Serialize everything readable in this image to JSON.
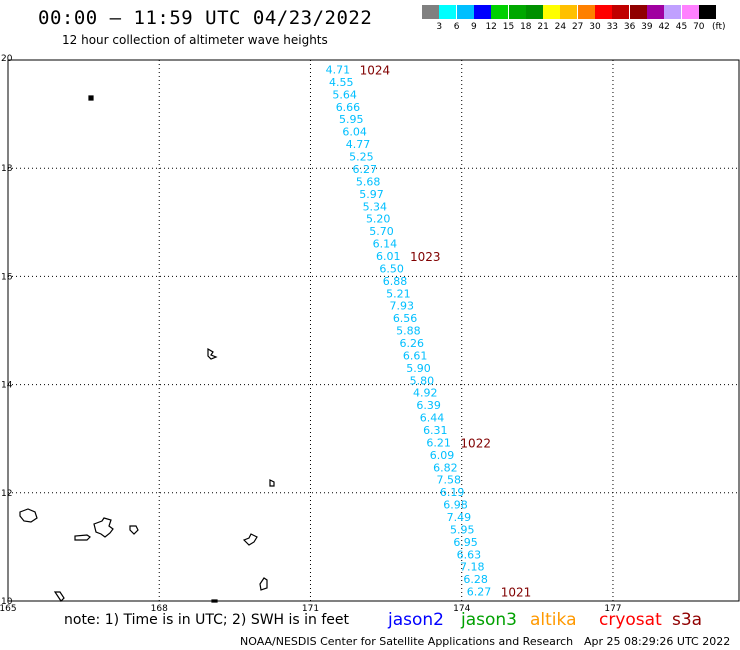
{
  "header": {
    "title": "00:00 – 11:59 UTC 04/23/2022",
    "subtitle": "12 hour collection of altimeter wave heights"
  },
  "color_scale": {
    "colors": [
      "#808080",
      "#00ffff",
      "#00bfff",
      "#0000ff",
      "#00d000",
      "#00a800",
      "#009000",
      "#ffff00",
      "#ffc000",
      "#ff8000",
      "#ff0000",
      "#c00000",
      "#900000",
      "#a000a0",
      "#c0a0ff",
      "#ff80ff",
      "#000000"
    ],
    "labels": [
      "3",
      "6",
      "9",
      "12",
      "15",
      "18",
      "21",
      "24",
      "27",
      "30",
      "33",
      "36",
      "39",
      "42",
      "45",
      "70"
    ],
    "unit": "(ft)"
  },
  "map": {
    "lon_ticks": [
      "165",
      "168",
      "171",
      "174",
      "177"
    ],
    "lat_ticks": [
      "20",
      "18",
      "16",
      "14",
      "12",
      "10"
    ],
    "lon_range": [
      165,
      179.5
    ],
    "lat_range": [
      10,
      20
    ],
    "track_color": "#00bfff",
    "time_color": "#800000",
    "swh_values": [
      "4.71",
      "4.55",
      "5.64",
      "6.66",
      "5.95",
      "6.04",
      "4.77",
      "5.25",
      "6.27",
      "5.68",
      "5.97",
      "5.34",
      "5.20",
      "5.70",
      "6.14",
      "6.01",
      "6.50",
      "6.88",
      "5.21",
      "7.93",
      "6.56",
      "5.88",
      "6.26",
      "6.61",
      "5.90",
      "5.80",
      "4.92",
      "6.39",
      "6.44",
      "6.31",
      "6.21",
      "6.09",
      "6.82",
      "7.58",
      "6.19",
      "6.98",
      "7.49",
      "5.95",
      "6.95",
      "6.63",
      "7.18",
      "6.28",
      "6.27"
    ],
    "time_labels": [
      {
        "text": "1024",
        "after_index": 0
      },
      {
        "text": "1023",
        "after_index": 15
      },
      {
        "text": "1022",
        "after_index": 30
      },
      {
        "text": "1021",
        "after_index": 42
      }
    ]
  },
  "footer": {
    "note": "note: 1) Time is in UTC; 2) SWH is in feet",
    "satellites": [
      {
        "name": "jason2",
        "color": "#0000ff"
      },
      {
        "name": "jason3",
        "color": "#00a000"
      },
      {
        "name": "altika",
        "color": "#ff9900"
      },
      {
        "name": "cryosat",
        "color": "#ff0000"
      },
      {
        "name": "s3a",
        "color": "#900000"
      }
    ],
    "credit": "NOAA/NESDIS Center for Satellite Applications and Research",
    "timestamp": "Apr 25 08:29:26 UTC 2022"
  }
}
